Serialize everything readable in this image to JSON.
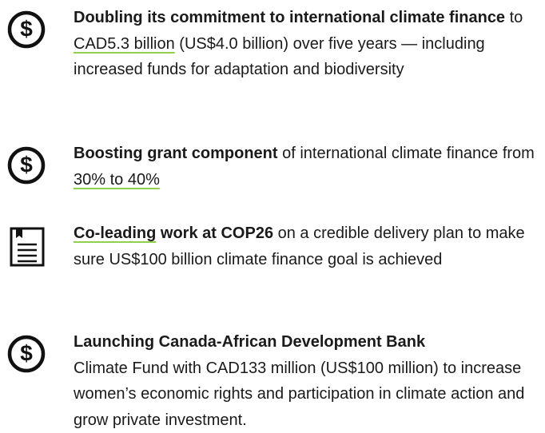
{
  "items": [
    {
      "icon": "dollar",
      "parts": [
        {
          "text": "Doubling its commitment to international climate finance",
          "style": "bold"
        },
        {
          "text": " to ",
          "style": "plain"
        },
        {
          "text": "CAD5.3 billion",
          "style": "link"
        },
        {
          "text": " (US$4.0 billion) over five years — including increased funds for adaptation and biodiversity",
          "style": "plain"
        }
      ]
    },
    {
      "icon": "dollar",
      "parts": [
        {
          "text": "Boosting grant component",
          "style": "bold"
        },
        {
          "text": " of international climate finance from ",
          "style": "plain"
        },
        {
          "text": "30% to 40%",
          "style": "link"
        }
      ]
    },
    {
      "icon": "document",
      "parts": [
        {
          "text": "Co-leading",
          "style": "bold-link"
        },
        {
          "text": " work at COP26",
          "style": "bold"
        },
        {
          "text": " on a credible delivery plan to make sure US$100 billion climate finance goal is achieved",
          "style": "plain"
        }
      ]
    },
    {
      "icon": "dollar",
      "parts": [
        {
          "text": "Launching Canada-African Development Bank",
          "style": "heading"
        },
        {
          "text": "Climate Fund with CAD133 million (US$100 million) to increase women’s economic rights and participation in climate action and grow private investment.",
          "style": "plain"
        }
      ]
    }
  ]
}
